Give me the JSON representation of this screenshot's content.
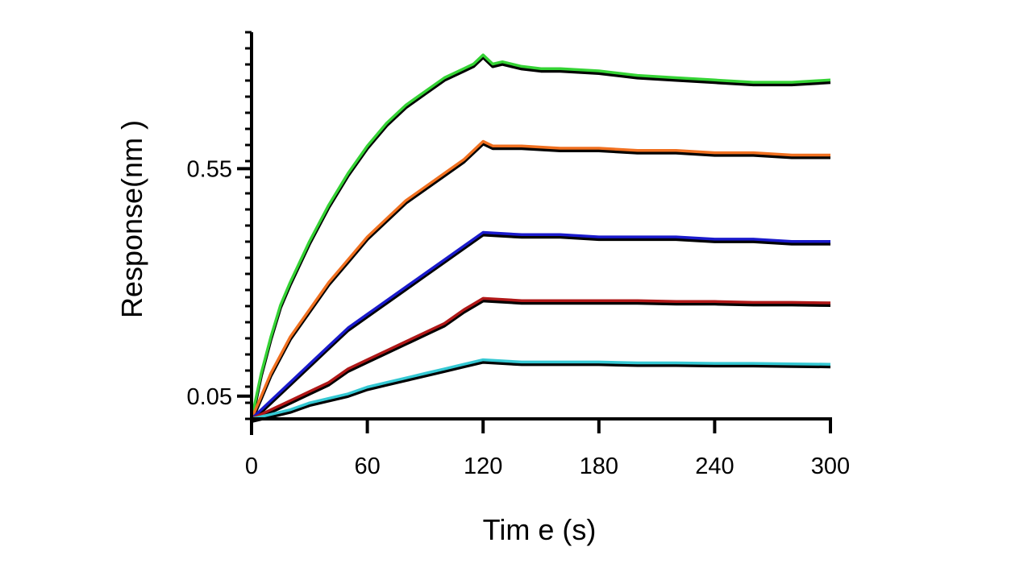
{
  "chart_data": {
    "type": "line",
    "title": "",
    "xlabel": "Tim e (s)",
    "ylabel": "Response(nm )",
    "xlim": [
      0,
      300
    ],
    "ylim": [
      0.0,
      0.85
    ],
    "x_ticks": [
      0,
      60,
      120,
      180,
      240,
      300
    ],
    "x_tick_labels": [
      "0",
      "60",
      "120",
      "180",
      "240",
      "300"
    ],
    "y_ticks": [
      0.05,
      0.55
    ],
    "y_tick_labels": [
      "0.05",
      "0.55"
    ],
    "grid": false,
    "legend": "none",
    "association_end": 120,
    "series": [
      {
        "color": "#35d335",
        "x": [
          0,
          5,
          10,
          15,
          20,
          30,
          40,
          50,
          60,
          70,
          80,
          90,
          100,
          110,
          115,
          120,
          125,
          130,
          140,
          150,
          160,
          180,
          200,
          220,
          240,
          260,
          280,
          300
        ],
        "y": [
          0.0,
          0.1,
          0.18,
          0.25,
          0.3,
          0.39,
          0.47,
          0.54,
          0.6,
          0.65,
          0.69,
          0.72,
          0.75,
          0.77,
          0.78,
          0.8,
          0.78,
          0.785,
          0.775,
          0.77,
          0.77,
          0.765,
          0.755,
          0.75,
          0.745,
          0.74,
          0.74,
          0.745
        ]
      },
      {
        "color": "#f07020",
        "x": [
          0,
          5,
          10,
          15,
          20,
          30,
          40,
          50,
          60,
          70,
          80,
          90,
          100,
          110,
          120,
          125,
          130,
          140,
          160,
          180,
          200,
          220,
          240,
          260,
          280,
          300
        ],
        "y": [
          0.0,
          0.05,
          0.1,
          0.14,
          0.18,
          0.24,
          0.3,
          0.35,
          0.4,
          0.44,
          0.48,
          0.51,
          0.54,
          0.57,
          0.61,
          0.6,
          0.6,
          0.6,
          0.595,
          0.595,
          0.59,
          0.59,
          0.585,
          0.585,
          0.58,
          0.58
        ]
      },
      {
        "color": "#1a1acc",
        "x": [
          0,
          10,
          20,
          30,
          40,
          50,
          60,
          70,
          80,
          90,
          100,
          110,
          120,
          140,
          160,
          180,
          200,
          220,
          240,
          260,
          280,
          300
        ],
        "y": [
          0.0,
          0.04,
          0.08,
          0.12,
          0.16,
          0.2,
          0.23,
          0.26,
          0.29,
          0.32,
          0.35,
          0.38,
          0.41,
          0.405,
          0.405,
          0.4,
          0.4,
          0.4,
          0.395,
          0.395,
          0.39,
          0.39
        ]
      },
      {
        "color": "#b01818",
        "x": [
          0,
          10,
          20,
          30,
          40,
          50,
          60,
          70,
          80,
          90,
          100,
          110,
          120,
          140,
          160,
          180,
          200,
          220,
          240,
          260,
          280,
          300
        ],
        "y": [
          0.0,
          0.02,
          0.04,
          0.06,
          0.08,
          0.11,
          0.13,
          0.15,
          0.17,
          0.19,
          0.21,
          0.24,
          0.265,
          0.26,
          0.26,
          0.26,
          0.26,
          0.258,
          0.258,
          0.256,
          0.256,
          0.255
        ]
      },
      {
        "color": "#35c8d3",
        "x": [
          0,
          10,
          20,
          30,
          40,
          50,
          60,
          70,
          80,
          90,
          100,
          110,
          120,
          140,
          160,
          180,
          200,
          220,
          240,
          260,
          280,
          300
        ],
        "y": [
          0.0,
          0.01,
          0.02,
          0.035,
          0.045,
          0.055,
          0.07,
          0.08,
          0.09,
          0.1,
          0.11,
          0.12,
          0.13,
          0.125,
          0.125,
          0.125,
          0.123,
          0.123,
          0.122,
          0.122,
          0.121,
          0.12
        ]
      }
    ]
  }
}
